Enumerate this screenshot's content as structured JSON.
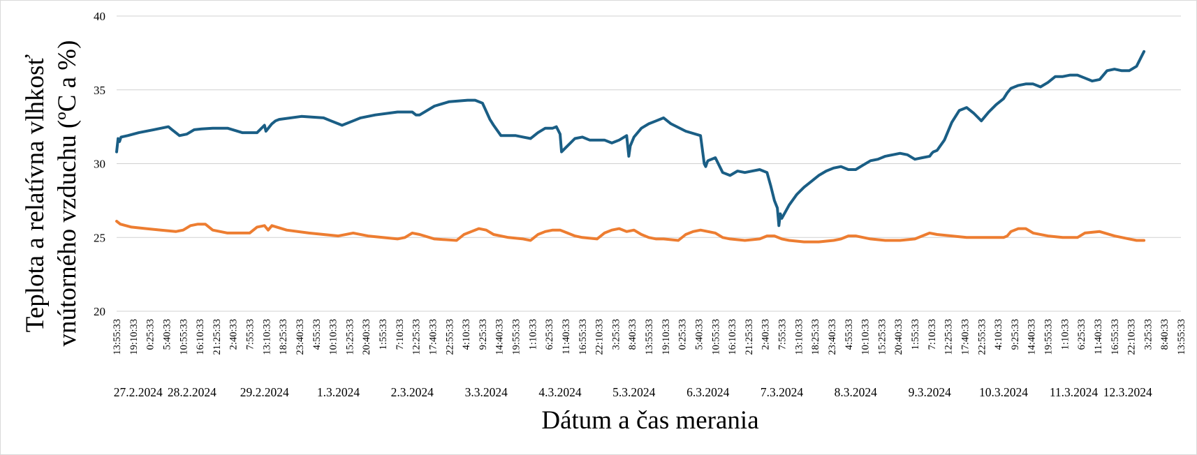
{
  "chart_data": {
    "type": "line",
    "xlabel": "Dátum a čas merania",
    "ylabel_lines": [
      "Teplota a  relatívna vlhkosť",
      "vnútorného vzduchu (ºC a %)"
    ],
    "ylim": [
      20,
      40
    ],
    "yticks": [
      20,
      25,
      30,
      35,
      40
    ],
    "grid": "horizontal",
    "x_time_labels": [
      "13:55:33",
      "19:10:33",
      "0:25:33",
      "5:40:33",
      "10:55:33",
      "16:10:33",
      "21:25:33",
      "2:40:33",
      "7:55:33",
      "13:10:33",
      "18:25:33",
      "23:40:33",
      "4:55:33",
      "10:10:33",
      "15:25:33",
      "20:40:33",
      "1:55:33",
      "7:10:33",
      "12:25:33",
      "17:40:33",
      "22:55:33",
      "4:10:33",
      "9:25:33",
      "14:40:33",
      "19:55:33",
      "1:10:33",
      "6:25:33",
      "11:40:33",
      "16:55:33",
      "22:10:33",
      "3:25:33",
      "8:40:33",
      "13:55:33",
      "19:10:33",
      "0:25:33",
      "5:40:33",
      "10:55:33",
      "16:10:33",
      "21:25:33",
      "2:40:33",
      "7:55:33",
      "13:10:33",
      "18:25:33",
      "23:40:33",
      "4:55:33",
      "10:10:33",
      "15:25:33",
      "20:40:33",
      "1:55:33",
      "7:10:33",
      "12:25:33",
      "17:40:33",
      "22:55:33",
      "4:10:33",
      "9:25:33",
      "14:40:33",
      "19:55:33",
      "1:10:33",
      "6:25:33",
      "11:40:33",
      "16:55:33",
      "22:10:33",
      "3:25:33",
      "8:40:33",
      "13:55:33"
    ],
    "x_date_labels": [
      "27.2.2024",
      "28.2.2024",
      "29.2.2024",
      "1.3.2024",
      "2.3.2024",
      "3.3.2024",
      "4.3.2024",
      "5.3.2024",
      "6.3.2024",
      "7.3.2024",
      "8.3.2024",
      "9.3.2024",
      "10.3.2024",
      "11.3.2024",
      "12.3.2024"
    ],
    "x_date_positions_days": [
      0.29,
      1.02,
      2.0,
      3.0,
      4.0,
      5.0,
      6.0,
      7.0,
      8.0,
      9.0,
      10.0,
      11.0,
      12.0,
      12.95,
      13.68
    ],
    "x_range_days": [
      0,
      14.4
    ],
    "series": [
      {
        "color": "#1a5e85",
        "x_days": [
          0,
          0.02,
          0.04,
          0.06,
          0.15,
          0.3,
          0.5,
          0.7,
          0.75,
          0.85,
          0.95,
          1.05,
          1.15,
          1.3,
          1.5,
          1.7,
          1.9,
          2.0,
          2.02,
          2.1,
          2.15,
          2.2,
          2.5,
          2.8,
          2.9,
          3.0,
          3.05,
          3.2,
          3.3,
          3.5,
          3.8,
          4.0,
          4.05,
          4.1,
          4.3,
          4.5,
          4.75,
          4.85,
          4.95,
          5.05,
          5.1,
          5.2,
          5.3,
          5.4,
          5.5,
          5.6,
          5.7,
          5.8,
          5.9,
          5.95,
          6.0,
          6.02,
          6.1,
          6.2,
          6.3,
          6.4,
          6.5,
          6.6,
          6.7,
          6.8,
          6.9,
          6.93,
          6.95,
          7.0,
          7.1,
          7.2,
          7.3,
          7.4,
          7.5,
          7.7,
          7.9,
          7.95,
          7.97,
          7.99,
          8.0,
          8.1,
          8.2,
          8.3,
          8.4,
          8.5,
          8.6,
          8.7,
          8.8,
          8.85,
          8.9,
          8.94,
          8.96,
          8.98,
          9.0,
          9.1,
          9.2,
          9.3,
          9.4,
          9.5,
          9.6,
          9.7,
          9.8,
          9.9,
          10.0,
          10.1,
          10.2,
          10.3,
          10.4,
          10.5,
          10.6,
          10.7,
          10.8,
          10.9,
          11.0,
          11.03,
          11.05,
          11.1,
          11.2,
          11.3,
          11.4,
          11.5,
          11.6,
          11.7,
          11.8,
          11.9,
          12.0,
          12.05,
          12.1,
          12.2,
          12.3,
          12.4,
          12.5,
          12.6,
          12.7,
          12.8,
          12.9,
          13.0,
          13.1,
          13.2,
          13.3,
          13.4,
          13.5,
          13.6,
          13.7,
          13.8,
          13.85,
          13.9
        ],
        "values": [
          30.8,
          31.7,
          31.5,
          31.8,
          31.9,
          32.1,
          32.3,
          32.5,
          32.3,
          31.9,
          32.0,
          32.3,
          32.35,
          32.4,
          32.4,
          32.1,
          32.1,
          32.6,
          32.2,
          32.7,
          32.9,
          33.0,
          33.2,
          33.1,
          32.9,
          32.7,
          32.6,
          32.9,
          33.1,
          33.3,
          33.5,
          33.5,
          33.3,
          33.3,
          33.9,
          34.2,
          34.3,
          34.3,
          34.1,
          33.0,
          32.6,
          31.9,
          31.9,
          31.9,
          31.8,
          31.7,
          32.1,
          32.4,
          32.4,
          32.5,
          32.0,
          30.8,
          31.2,
          31.7,
          31.8,
          31.6,
          31.6,
          31.6,
          31.4,
          31.6,
          31.9,
          30.5,
          31.2,
          31.8,
          32.4,
          32.7,
          32.9,
          33.1,
          32.7,
          32.2,
          31.9,
          30.0,
          29.8,
          30.1,
          30.2,
          30.4,
          29.4,
          29.2,
          29.5,
          29.4,
          29.5,
          29.6,
          29.4,
          28.5,
          27.5,
          27.0,
          25.8,
          26.6,
          26.3,
          27.2,
          27.9,
          28.4,
          28.8,
          29.2,
          29.5,
          29.7,
          29.8,
          29.6,
          29.6,
          29.9,
          30.2,
          30.3,
          30.5,
          30.6,
          30.7,
          30.6,
          30.3,
          30.4,
          30.5,
          30.7,
          30.8,
          30.9,
          31.6,
          32.8,
          33.6,
          33.8,
          33.4,
          32.9,
          33.5,
          34.0,
          34.4,
          34.8,
          35.1,
          35.3,
          35.4,
          35.4,
          35.2,
          35.5,
          35.9,
          35.9,
          36.0,
          36.0,
          35.8,
          35.6,
          35.7,
          36.3,
          36.4,
          36.3,
          36.3,
          36.6,
          37.1,
          37.6
        ]
      },
      {
        "color": "#ed7d31",
        "x_days": [
          0,
          0.05,
          0.2,
          0.4,
          0.6,
          0.8,
          0.9,
          1.0,
          1.1,
          1.2,
          1.3,
          1.5,
          1.8,
          1.9,
          2.0,
          2.05,
          2.1,
          2.3,
          2.6,
          2.8,
          3.0,
          3.2,
          3.4,
          3.6,
          3.8,
          3.9,
          4.0,
          4.1,
          4.3,
          4.6,
          4.7,
          4.8,
          4.9,
          5.0,
          5.1,
          5.3,
          5.5,
          5.6,
          5.7,
          5.8,
          5.9,
          6.0,
          6.1,
          6.2,
          6.3,
          6.5,
          6.6,
          6.7,
          6.8,
          6.9,
          7.0,
          7.1,
          7.2,
          7.3,
          7.4,
          7.6,
          7.7,
          7.8,
          7.9,
          8.0,
          8.1,
          8.2,
          8.3,
          8.5,
          8.7,
          8.8,
          8.9,
          9.0,
          9.1,
          9.3,
          9.5,
          9.7,
          9.8,
          9.9,
          10.0,
          10.2,
          10.4,
          10.6,
          10.8,
          11.0,
          11.1,
          11.3,
          11.5,
          11.7,
          11.9,
          12.0,
          12.05,
          12.1,
          12.2,
          12.3,
          12.4,
          12.6,
          12.8,
          13.0,
          13.1,
          13.3,
          13.5,
          13.7,
          13.8,
          13.9
        ],
        "values": [
          26.1,
          25.9,
          25.7,
          25.6,
          25.5,
          25.4,
          25.5,
          25.8,
          25.9,
          25.9,
          25.5,
          25.3,
          25.3,
          25.7,
          25.8,
          25.5,
          25.8,
          25.5,
          25.3,
          25.2,
          25.1,
          25.3,
          25.1,
          25.0,
          24.9,
          25.0,
          25.3,
          25.2,
          24.9,
          24.8,
          25.2,
          25.4,
          25.6,
          25.5,
          25.2,
          25.0,
          24.9,
          24.8,
          25.2,
          25.4,
          25.5,
          25.5,
          25.3,
          25.1,
          25.0,
          24.9,
          25.3,
          25.5,
          25.6,
          25.4,
          25.5,
          25.2,
          25.0,
          24.9,
          24.9,
          24.8,
          25.2,
          25.4,
          25.5,
          25.4,
          25.3,
          25.0,
          24.9,
          24.8,
          24.9,
          25.1,
          25.1,
          24.9,
          24.8,
          24.7,
          24.7,
          24.8,
          24.9,
          25.1,
          25.1,
          24.9,
          24.8,
          24.8,
          24.9,
          25.3,
          25.2,
          25.1,
          25.0,
          25.0,
          25.0,
          25.0,
          25.1,
          25.4,
          25.6,
          25.6,
          25.3,
          25.1,
          25.0,
          25.0,
          25.3,
          25.4,
          25.1,
          24.9,
          24.8,
          24.8
        ]
      }
    ]
  }
}
